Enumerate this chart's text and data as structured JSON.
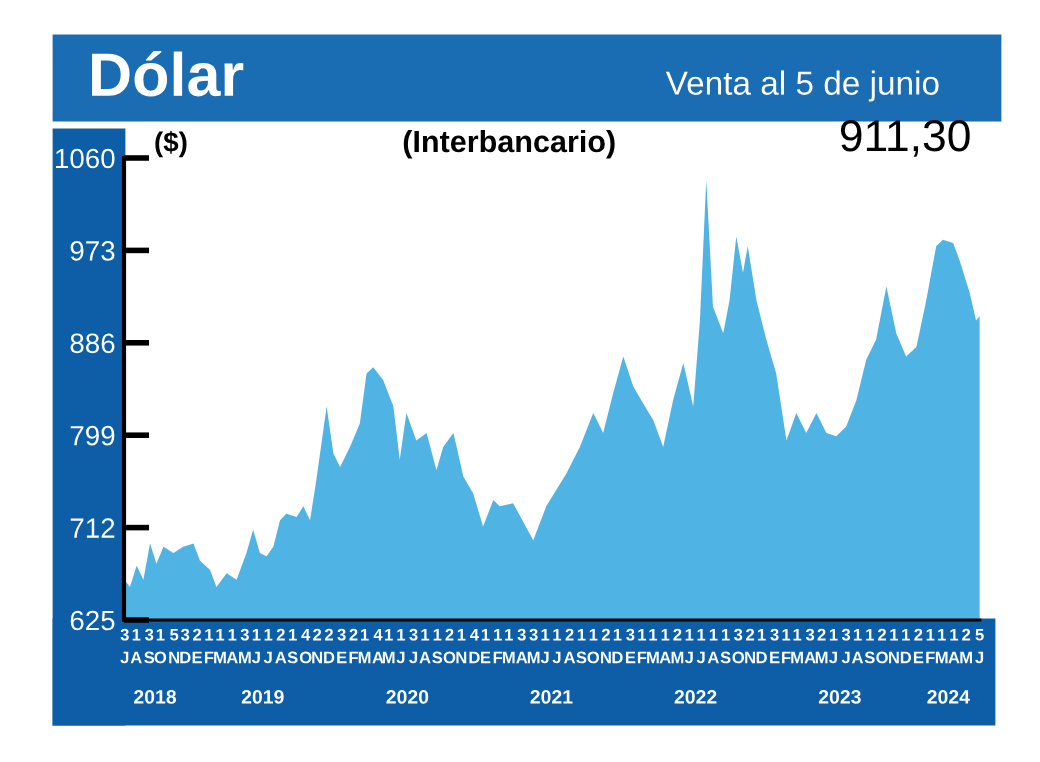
{
  "chart_data": {
    "type": "area",
    "title": "Dólar",
    "subtitle": "Venta al 5 de junio",
    "ylabel": "($)",
    "annotations": [
      "(Interbancario)",
      "911,30",
      "2018",
      "2019",
      "2020",
      "2021",
      "2022",
      "2023",
      "2024"
    ],
    "x": [
      "2018-07-02",
      "2018-07-16",
      "2018-08-02",
      "2018-08-19",
      "2018-09-05",
      "2018-09-21",
      "2018-10-09",
      "2018-11-03",
      "2018-11-28",
      "2018-12-24",
      "2019-01-09",
      "2019-02-04",
      "2019-02-20",
      "2019-03-18",
      "2019-04-12",
      "2019-05-07",
      "2019-05-24",
      "2019-06-10",
      "2019-06-27",
      "2019-07-14",
      "2019-07-31",
      "2019-08-16",
      "2019-09-11",
      "2019-09-28",
      "2019-10-15",
      "2019-10-31",
      "2019-11-26",
      "2019-12-13",
      "2019-12-30",
      "2020-01-24",
      "2020-02-18",
      "2020-03-06",
      "2020-03-23",
      "2020-04-17",
      "2020-05-13",
      "2020-05-29",
      "2020-06-15",
      "2020-07-10",
      "2020-08-05",
      "2020-08-30",
      "2020-09-16",
      "2020-10-12",
      "2020-11-06",
      "2020-12-01",
      "2020-12-26",
      "2021-01-21",
      "2021-02-06",
      "2021-03-12",
      "2021-05-02",
      "2021-06-04",
      "2021-07-25",
      "2021-08-28",
      "2021-10-01",
      "2021-10-26",
      "2021-11-20",
      "2021-12-16",
      "2022-01-10",
      "2022-02-04",
      "2022-03-02",
      "2022-03-27",
      "2022-04-21",
      "2022-05-17",
      "2022-06-11",
      "2022-06-28",
      "2022-07-14",
      "2022-07-31",
      "2022-08-26",
      "2022-09-11",
      "2022-09-28",
      "2022-10-15",
      "2022-10-27",
      "2022-11-18",
      "2022-12-13",
      "2023-01-07",
      "2023-02-02",
      "2023-02-27",
      "2023-03-24",
      "2023-04-19",
      "2023-05-14",
      "2023-06-08",
      "2023-07-03",
      "2023-07-29",
      "2023-08-23",
      "2023-09-17",
      "2023-10-13",
      "2023-11-07",
      "2023-12-02",
      "2023-12-28",
      "2024-01-22",
      "2024-02-16",
      "2024-03-04",
      "2024-03-30",
      "2024-04-15",
      "2024-05-11",
      "2024-05-27",
      "2024-06-05"
    ],
    "series": [
      {
        "color": "#4fb3e3",
        "values": [
          663,
          656,
          676,
          663,
          697,
          678,
          694,
          688,
          694,
          697,
          681,
          672,
          656,
          669,
          663,
          688,
          710,
          688,
          685,
          694,
          719,
          725,
          722,
          732,
          719,
          757,
          826,
          782,
          769,
          788,
          810,
          857,
          863,
          851,
          826,
          776,
          820,
          794,
          801,
          766,
          788,
          801,
          760,
          744,
          713,
          738,
          732,
          735,
          700,
          732,
          763,
          788,
          820,
          801,
          838,
          873,
          845,
          829,
          813,
          788,
          832,
          867,
          826,
          907,
          1039,
          920,
          895,
          926,
          986,
          952,
          977,
          926,
          889,
          857,
          794,
          820,
          801,
          820,
          801,
          798,
          807,
          832,
          870,
          889,
          939,
          895,
          873,
          882,
          926,
          977,
          983,
          980,
          964,
          933,
          907,
          911
        ]
      }
    ],
    "xlim": [
      "2018-07-01",
      "2024-06-06"
    ],
    "ylim": [
      625,
      1060
    ],
    "yticks": [
      625,
      712,
      799,
      886,
      973,
      1060
    ],
    "xticks": [
      {
        "value": "2018-07-03",
        "label": "3\nJ"
      },
      {
        "value": "2018-08-01",
        "label": "1\nA"
      },
      {
        "value": "2018-09-03",
        "label": "3\nS"
      },
      {
        "value": "2018-10-01",
        "label": "1\nO"
      },
      {
        "value": "2018-11-05",
        "label": "5\nN"
      },
      {
        "value": "2018-12-03",
        "label": "3\nD"
      },
      {
        "value": "2019-01-02",
        "label": "2\nE"
      },
      {
        "value": "2019-02-01",
        "label": "1\nF"
      },
      {
        "value": "2019-03-01",
        "label": "1\nM"
      },
      {
        "value": "2019-04-01",
        "label": "1\nA"
      },
      {
        "value": "2019-05-03",
        "label": "3\nM"
      },
      {
        "value": "2019-06-01",
        "label": "1\nJ"
      },
      {
        "value": "2019-07-01",
        "label": "1\nJ"
      },
      {
        "value": "2019-08-02",
        "label": "2\nA"
      },
      {
        "value": "2019-09-01",
        "label": "1\nS"
      },
      {
        "value": "2019-10-04",
        "label": "4\nO"
      },
      {
        "value": "2019-11-02",
        "label": "2\nN"
      },
      {
        "value": "2019-12-02",
        "label": "2\nD"
      },
      {
        "value": "2020-01-03",
        "label": "3\nE"
      },
      {
        "value": "2020-02-02",
        "label": "2\nF"
      },
      {
        "value": "2020-03-01",
        "label": "1\nM"
      },
      {
        "value": "2020-04-04",
        "label": "4\nA"
      },
      {
        "value": "2020-05-01",
        "label": "1\nM"
      },
      {
        "value": "2020-06-01",
        "label": "1\nJ"
      },
      {
        "value": "2020-07-03",
        "label": "3\nJ"
      },
      {
        "value": "2020-08-01",
        "label": "1\nA"
      },
      {
        "value": "2020-09-01",
        "label": "1\nS"
      },
      {
        "value": "2020-10-02",
        "label": "2\nO"
      },
      {
        "value": "2020-11-01",
        "label": "1\nN"
      },
      {
        "value": "2020-12-04",
        "label": "4\nD"
      },
      {
        "value": "2021-01-01",
        "label": "1\nE"
      },
      {
        "value": "2021-02-01",
        "label": "1\nF"
      },
      {
        "value": "2021-03-01",
        "label": "1\nM"
      },
      {
        "value": "2021-04-03",
        "label": "3\nA"
      },
      {
        "value": "2021-05-03",
        "label": "3\nM"
      },
      {
        "value": "2021-06-01",
        "label": "1\nJ"
      },
      {
        "value": "2021-07-01",
        "label": "1\nJ"
      },
      {
        "value": "2021-08-02",
        "label": "2\nA"
      },
      {
        "value": "2021-09-01",
        "label": "1\nS"
      },
      {
        "value": "2021-10-01",
        "label": "1\nO"
      },
      {
        "value": "2021-11-02",
        "label": "2\nN"
      },
      {
        "value": "2021-12-01",
        "label": "1\nD"
      },
      {
        "value": "2022-01-03",
        "label": "3\nE"
      },
      {
        "value": "2022-02-01",
        "label": "1\nF"
      },
      {
        "value": "2022-03-01",
        "label": "1\nM"
      },
      {
        "value": "2022-04-01",
        "label": "1\nA"
      },
      {
        "value": "2022-05-02",
        "label": "2\nM"
      },
      {
        "value": "2022-06-01",
        "label": "1\nJ"
      },
      {
        "value": "2022-07-01",
        "label": "1\nJ"
      },
      {
        "value": "2022-08-01",
        "label": "1\nA"
      },
      {
        "value": "2022-09-01",
        "label": "1\nS"
      },
      {
        "value": "2022-10-03",
        "label": "3\nO"
      },
      {
        "value": "2022-11-02",
        "label": "2\nN"
      },
      {
        "value": "2022-12-01",
        "label": "1\nD"
      },
      {
        "value": "2023-01-03",
        "label": "3\nE"
      },
      {
        "value": "2023-02-01",
        "label": "1\nF"
      },
      {
        "value": "2023-03-01",
        "label": "1\nM"
      },
      {
        "value": "2023-04-03",
        "label": "3\nA"
      },
      {
        "value": "2023-05-02",
        "label": "2\nM"
      },
      {
        "value": "2023-06-01",
        "label": "1\nJ"
      },
      {
        "value": "2023-07-03",
        "label": "3\nJ"
      },
      {
        "value": "2023-08-01",
        "label": "1\nA"
      },
      {
        "value": "2023-09-01",
        "label": "1\nS"
      },
      {
        "value": "2023-10-02",
        "label": "2\nO"
      },
      {
        "value": "2023-11-01",
        "label": "1\nN"
      },
      {
        "value": "2023-12-01",
        "label": "1\nD"
      },
      {
        "value": "2024-01-02",
        "label": "2\nE"
      },
      {
        "value": "2024-02-01",
        "label": "1\nF"
      },
      {
        "value": "2024-03-01",
        "label": "1\nM"
      },
      {
        "value": "2024-04-01",
        "label": "1\nA"
      },
      {
        "value": "2024-05-02",
        "label": "2\nM"
      },
      {
        "value": "2024-06-05",
        "label": "5\nJ"
      }
    ]
  }
}
